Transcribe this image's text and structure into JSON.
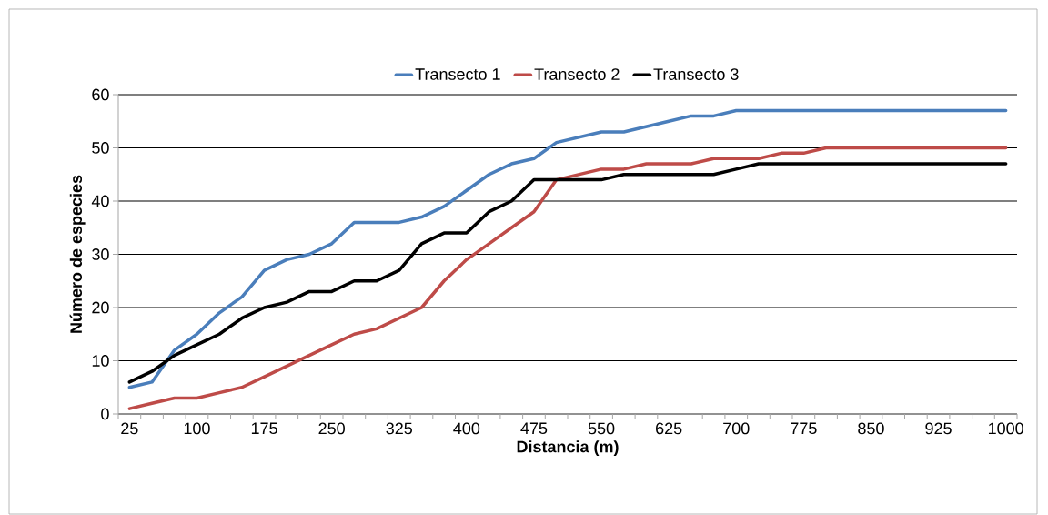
{
  "chart_data": {
    "type": "line",
    "xlabel": "Distancia (m)",
    "ylabel": "Número de especies",
    "categories": [
      "25",
      null,
      null,
      "100",
      null,
      null,
      "175",
      null,
      null,
      "250",
      null,
      null,
      "325",
      null,
      null,
      "400",
      null,
      null,
      "475",
      null,
      null,
      "550",
      null,
      null,
      "625",
      null,
      null,
      "700",
      null,
      null,
      "775",
      null,
      null,
      "850",
      null,
      null,
      "925",
      null,
      null,
      "1000"
    ],
    "series": [
      {
        "name": "Transecto 1",
        "color": "#4a7ebb",
        "values": [
          5,
          6,
          12,
          15,
          19,
          22,
          27,
          29,
          30,
          32,
          36,
          36,
          36,
          37,
          39,
          42,
          45,
          47,
          48,
          51,
          52,
          53,
          53,
          54,
          55,
          56,
          56,
          57,
          57,
          57,
          57,
          57,
          57,
          57,
          57,
          57,
          57,
          57,
          57,
          57
        ]
      },
      {
        "name": "Transecto 2",
        "color": "#be4b48",
        "values": [
          1,
          2,
          3,
          3,
          4,
          5,
          7,
          9,
          11,
          13,
          15,
          16,
          18,
          20,
          25,
          29,
          32,
          35,
          38,
          44,
          45,
          46,
          46,
          47,
          47,
          47,
          48,
          48,
          48,
          49,
          49,
          50,
          50,
          50,
          50,
          50,
          50,
          50,
          50,
          50
        ]
      },
      {
        "name": "Transecto 3",
        "color": "#000000",
        "values": [
          6,
          8,
          11,
          13,
          15,
          18,
          20,
          21,
          23,
          23,
          25,
          25,
          27,
          32,
          34,
          34,
          38,
          40,
          44,
          44,
          44,
          44,
          45,
          45,
          45,
          45,
          45,
          46,
          47,
          47,
          47,
          47,
          47,
          47,
          47,
          47,
          47,
          47,
          47,
          47
        ]
      }
    ],
    "ylim": [
      0,
      60
    ],
    "yticks": [
      0,
      10,
      20,
      30,
      40,
      50,
      60
    ],
    "grid": "y",
    "legend": "top",
    "marker": "none",
    "line_style": "solid"
  }
}
